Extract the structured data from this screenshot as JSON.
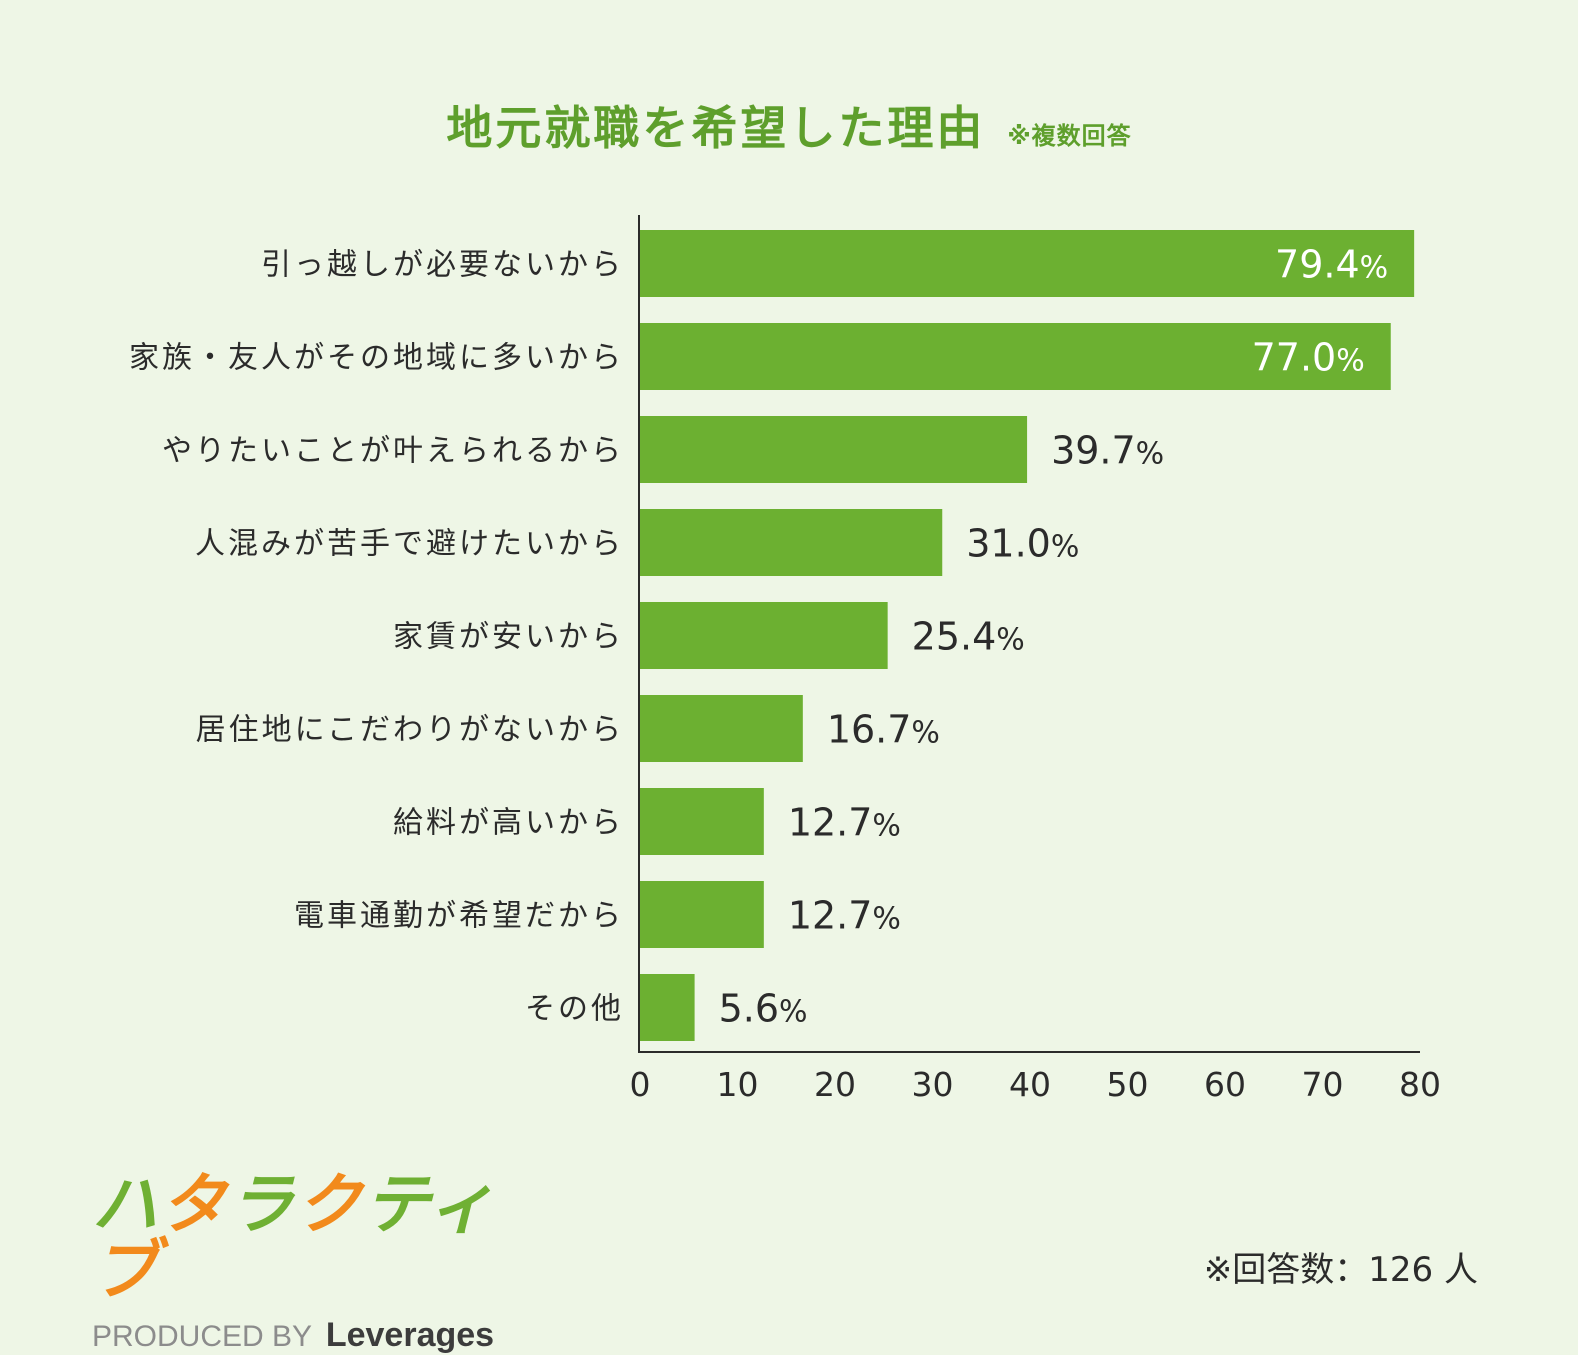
{
  "title": "地元就職を希望した理由",
  "title_note": "※複数回答",
  "footnote": "※回答数：126 人",
  "logo": {
    "name_chars": [
      "ハ",
      "タ",
      "ラ",
      "ク",
      "テ",
      "ィ",
      "ブ"
    ],
    "produced_by": "PRODUCED BY",
    "brand": "Leverages"
  },
  "colors": {
    "bar": "#6cb031",
    "title": "#5e9f2c",
    "background": "#eef6e6",
    "logo_green": "#6fb033",
    "logo_orange": "#f28a1c"
  },
  "chart_data": {
    "type": "bar",
    "orientation": "horizontal",
    "title": "地元就職を希望した理由",
    "categories": [
      "引っ越しが必要ないから",
      "家族・友人がその地域に多いから",
      "やりたいことが叶えられるから",
      "人混みが苦手で避けたいから",
      "家賃が安いから",
      "居住地にこだわりがないから",
      "給料が高いから",
      "電車通勤が希望だから",
      "その他"
    ],
    "values": [
      79.4,
      77.0,
      39.7,
      31.0,
      25.4,
      16.7,
      12.7,
      12.7,
      5.6
    ],
    "value_labels": [
      "79.4",
      "77.0",
      "39.7",
      "31.0",
      "25.4",
      "16.7",
      "12.7",
      "12.7",
      "5.6"
    ],
    "unit": "%",
    "xlim": [
      0,
      80
    ],
    "xticks": [
      0,
      10,
      20,
      30,
      40,
      50,
      60,
      70,
      80
    ],
    "grid": false,
    "legend": "none"
  }
}
